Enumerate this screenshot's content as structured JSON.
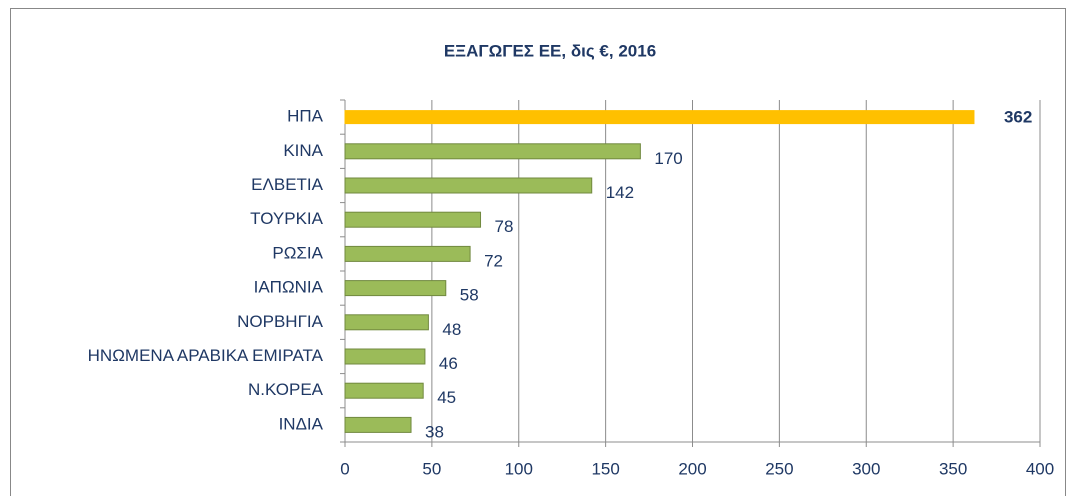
{
  "chart_data": {
    "type": "barh",
    "title": "ΕΞΑΓΩΓΕΣ ΕΕ, δις €, 2016",
    "categories": [
      "ΗΠΑ",
      "ΚΙΝΑ",
      "ΕΛΒΕΤΙΑ",
      "ΤΟΥΡΚΙΑ",
      "ΡΩΣΙΑ",
      "ΙΑΠΩΝΙΑ",
      "ΝΟΡΒΗΓΙΑ",
      "ΗΝΩΜΕΝΑ ΑΡΑΒΙΚΑ ΕΜΙΡΑΤΑ",
      "Ν.ΚΟΡΕΑ",
      "ΙΝΔΙΑ"
    ],
    "values": [
      362,
      170,
      142,
      78,
      72,
      58,
      48,
      46,
      45,
      38
    ],
    "color": "#9bbb59",
    "edge_color": "#71893f",
    "highlight": {
      "index": 0,
      "color": "#ffc000"
    },
    "xlim": [
      0,
      400
    ],
    "xticks": [
      0,
      50,
      100,
      150,
      200,
      250,
      300,
      350,
      400
    ],
    "grid": true
  }
}
